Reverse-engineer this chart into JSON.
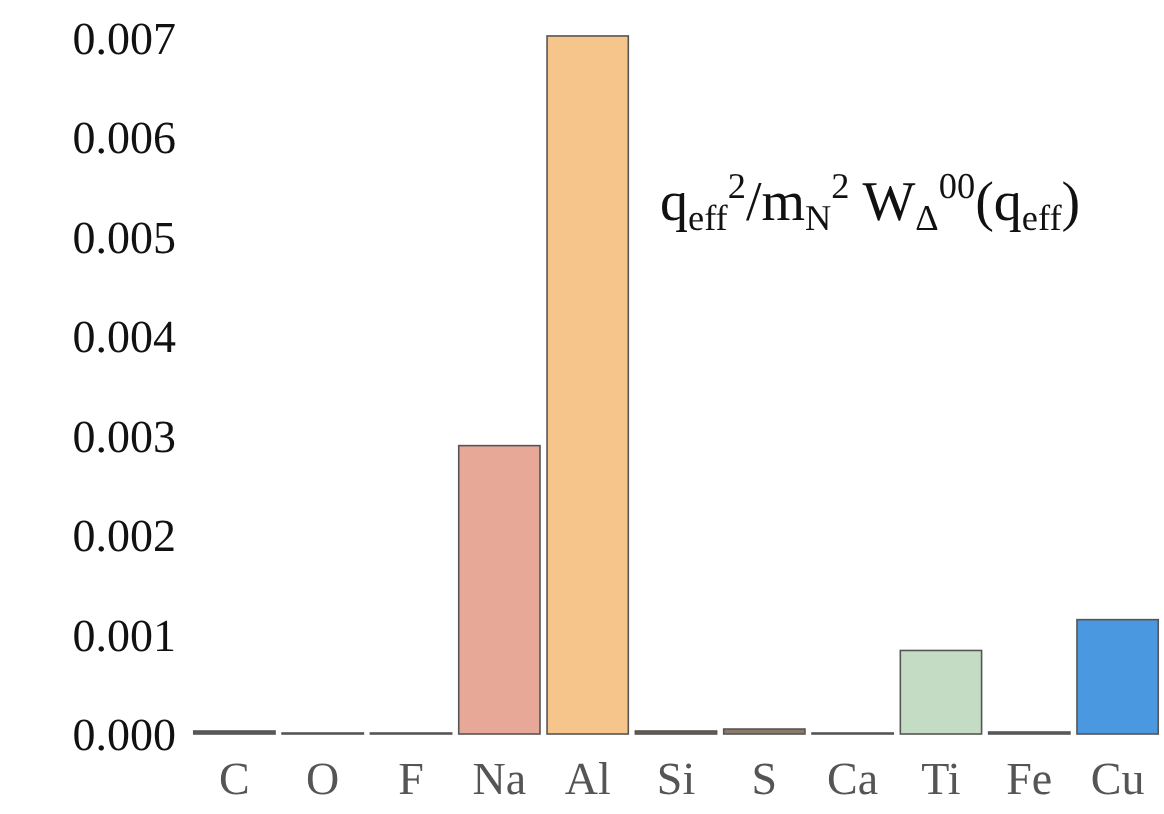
{
  "chart_data": {
    "type": "bar",
    "categories": [
      "C",
      "O",
      "F",
      "Na",
      "Al",
      "Si",
      "S",
      "Ca",
      "Ti",
      "Fe",
      "Cu"
    ],
    "values": [
      3e-05,
      1e-05,
      1e-05,
      0.0029,
      0.00702,
      3e-05,
      5e-05,
      1e-05,
      0.00084,
      2e-05,
      0.00115
    ],
    "colors": [
      "#5a5a5a",
      "#8a8a8a",
      "#8a8a8a",
      "#e8a898",
      "#f5c58c",
      "#6a5a50",
      "#8a7a6a",
      "#8a8a8a",
      "#c4dcc4",
      "#5a6a70",
      "#4a98e0"
    ],
    "ylim": [
      0,
      0.0071
    ],
    "yticks": [
      {
        "value": 0,
        "label": "0.000"
      },
      {
        "value": 0.001,
        "label": "0.001"
      },
      {
        "value": 0.002,
        "label": "0.002"
      },
      {
        "value": 0.003,
        "label": "0.003"
      },
      {
        "value": 0.004,
        "label": "0.004"
      },
      {
        "value": 0.005,
        "label": "0.005"
      },
      {
        "value": 0.006,
        "label": "0.006"
      },
      {
        "value": 0.007,
        "label": "0.007"
      }
    ],
    "annotations": [
      "q$_{eff}$$^{2}$/m$_{N}$$^{2}$ W$_{Δ}$$^{00}$(q$_{eff}$)"
    ]
  }
}
